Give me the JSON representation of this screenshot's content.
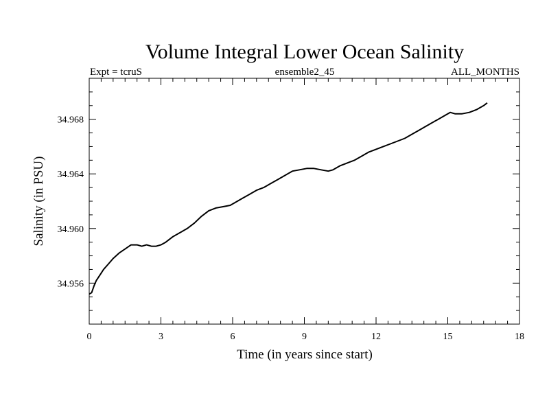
{
  "chart_data": {
    "type": "line",
    "title": "Volume Integral Lower Ocean Salinity",
    "subtitles": {
      "left": "Expt = tcruS",
      "center": "ensemble2_45",
      "right": "ALL_MONTHS"
    },
    "xlabel": "Time (in years since start)",
    "ylabel": "Salinity (in PSU)",
    "xlim": [
      0,
      18
    ],
    "ylim": [
      34.953,
      34.971
    ],
    "xticks": [
      0,
      3,
      6,
      9,
      12,
      15,
      18
    ],
    "xtick_labels": [
      "0",
      "3",
      "6",
      "9",
      "12",
      "15",
      "18"
    ],
    "yticks": [
      34.956,
      34.96,
      34.964,
      34.968
    ],
    "ytick_labels": [
      "34.956",
      "34.960",
      "34.964",
      "34.968"
    ],
    "grid": false,
    "series": [
      {
        "color": "#000000",
        "x": [
          0.0,
          0.1,
          0.2,
          0.3,
          0.45,
          0.6,
          0.8,
          1.0,
          1.25,
          1.5,
          1.75,
          2.0,
          2.2,
          2.4,
          2.6,
          2.8,
          3.0,
          3.2,
          3.5,
          3.8,
          4.1,
          4.4,
          4.7,
          5.0,
          5.3,
          5.6,
          5.9,
          6.1,
          6.4,
          6.7,
          7.0,
          7.3,
          7.6,
          7.9,
          8.2,
          8.5,
          8.8,
          9.1,
          9.4,
          9.7,
          10.0,
          10.2,
          10.5,
          10.8,
          11.1,
          11.4,
          11.7,
          12.0,
          12.3,
          12.6,
          12.9,
          13.2,
          13.5,
          13.8,
          14.1,
          14.3,
          14.6,
          14.9,
          15.1,
          15.3,
          15.6,
          15.9,
          16.2,
          16.5,
          16.65
        ],
        "y": [
          34.9552,
          34.9553,
          34.9558,
          34.9562,
          34.9566,
          34.957,
          34.9574,
          34.9578,
          34.9582,
          34.9585,
          34.9588,
          34.9588,
          34.9587,
          34.9588,
          34.9587,
          34.9587,
          34.9588,
          34.959,
          34.9594,
          34.9597,
          34.96,
          34.9604,
          34.9609,
          34.9613,
          34.9615,
          34.9616,
          34.9617,
          34.9619,
          34.9622,
          34.9625,
          34.9628,
          34.963,
          34.9633,
          34.9636,
          34.9639,
          34.9642,
          34.9643,
          34.9644,
          34.9644,
          34.9643,
          34.9642,
          34.9643,
          34.9646,
          34.9648,
          34.965,
          34.9653,
          34.9656,
          34.9658,
          34.966,
          34.9662,
          34.9664,
          34.9666,
          34.9669,
          34.9672,
          34.9675,
          34.9677,
          34.968,
          34.9683,
          34.9685,
          34.9684,
          34.9684,
          34.9685,
          34.9687,
          34.969,
          34.9692
        ]
      }
    ]
  }
}
